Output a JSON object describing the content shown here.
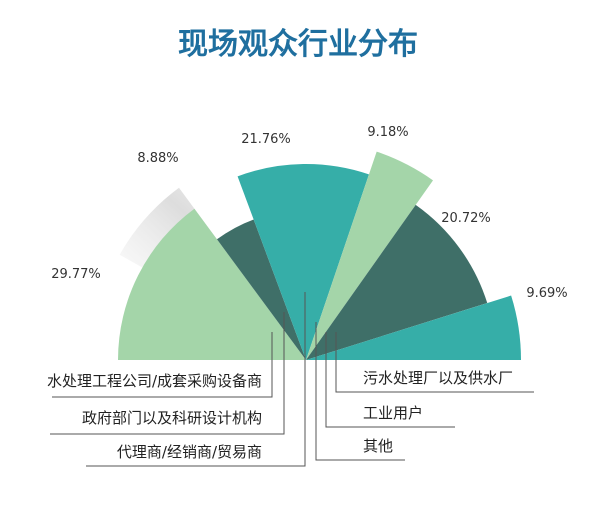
{
  "chart_data": {
    "type": "pie",
    "title": "现场观众行业分布",
    "slices": [
      {
        "label": "水处理工程公司/成套采购设备商",
        "value": 29.77,
        "value_label": "29.77%",
        "color": "#a4d5a9"
      },
      {
        "label": "政府部门以及科研设计机构",
        "value": 8.88,
        "value_label": "8.88%",
        "color": "#3f6f68"
      },
      {
        "label": "代理商/经销商/贸易商",
        "value": 21.76,
        "value_label": "21.76%",
        "color": "#36aea8"
      },
      {
        "label": "其他",
        "value": 9.18,
        "value_label": "9.18%",
        "color": "#a4d5a9"
      },
      {
        "label": "工业用户",
        "value": 20.72,
        "value_label": "20.72%",
        "color": "#3f6f68"
      },
      {
        "label": "污水处理厂以及供水厂",
        "value": 9.69,
        "value_label": "9.69%",
        "color": "#36aea8"
      }
    ],
    "title_color": "#1f6f9f"
  }
}
